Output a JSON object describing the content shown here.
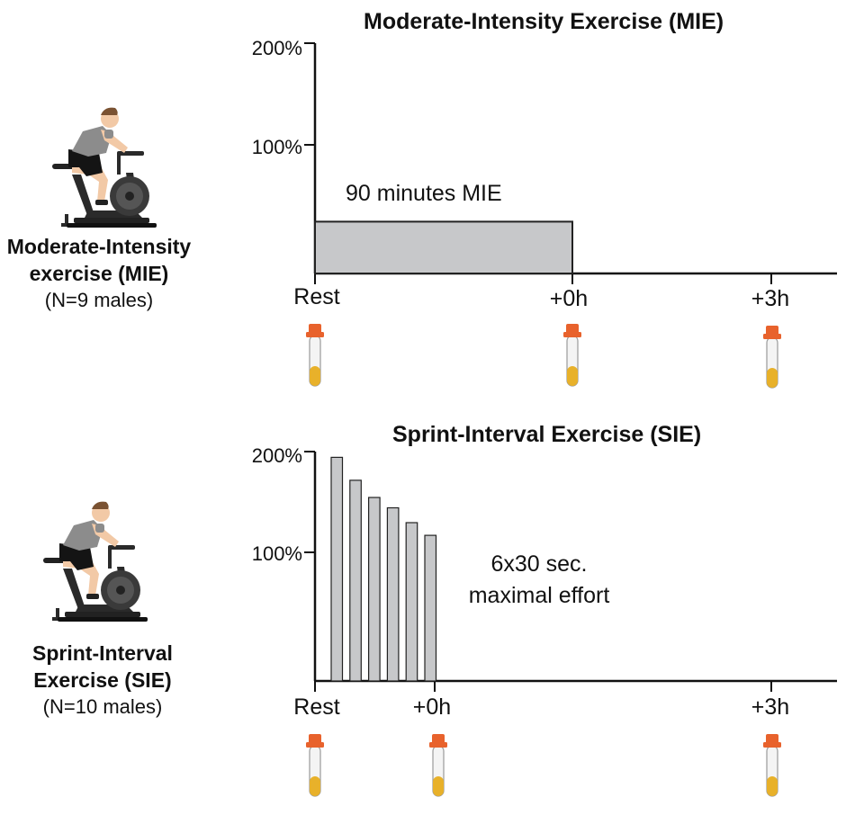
{
  "groups": [
    {
      "name_line1": "Moderate-Intensity",
      "name_line2": "exercise (MIE)",
      "n": "(N=9 males)",
      "icon": "stationary-bike-cyclist-icon"
    },
    {
      "name_line1": "Sprint-Interval",
      "name_line2": "Exercise (SIE)",
      "n": "(N=10 males)",
      "icon": "stationary-bike-cyclist-icon"
    }
  ],
  "panels": [
    {
      "title": "Moderate-Intensity Exercise (MIE)",
      "y_ticks": [
        "200%",
        "100%"
      ],
      "annotation_lines": [
        "90 minutes MIE"
      ],
      "timepoints": [
        "Rest",
        "+0h",
        "+3h"
      ]
    },
    {
      "title": "Sprint-Interval Exercise (SIE)",
      "y_ticks": [
        "200%",
        "100%"
      ],
      "annotation_lines": [
        "6x30 sec.",
        "maximal effort"
      ],
      "timepoints": [
        "Rest",
        "+0h",
        "+3h"
      ]
    }
  ],
  "chart_data": [
    {
      "type": "bar",
      "title": "Moderate-Intensity Exercise (MIE)",
      "ylabel": "",
      "yticks": [
        100,
        200
      ],
      "ylim": [
        0,
        200
      ],
      "bars": [
        {
          "label": "90 minutes MIE",
          "value": 45,
          "start": "Rest",
          "end": "+0h"
        }
      ],
      "blood_samples": [
        "Rest",
        "+0h",
        "+3h"
      ]
    },
    {
      "type": "bar",
      "title": "Sprint-Interval Exercise (SIE)",
      "ylabel": "",
      "yticks": [
        100,
        200
      ],
      "ylim": [
        0,
        200
      ],
      "values": [
        195,
        175,
        160,
        151,
        138,
        127
      ],
      "bar_label": "6x30 sec. maximal effort",
      "blood_samples": [
        "Rest",
        "+0h",
        "+3h"
      ]
    }
  ],
  "colors": {
    "bar_fill": "#c7c8ca",
    "bar_stroke": "#222222",
    "tube_cap": "#e8622c",
    "tube_liquid": "#e8b12a",
    "shirt": "#8c8c8c",
    "skin": "#f2c9a6",
    "hair": "#7a5232"
  }
}
